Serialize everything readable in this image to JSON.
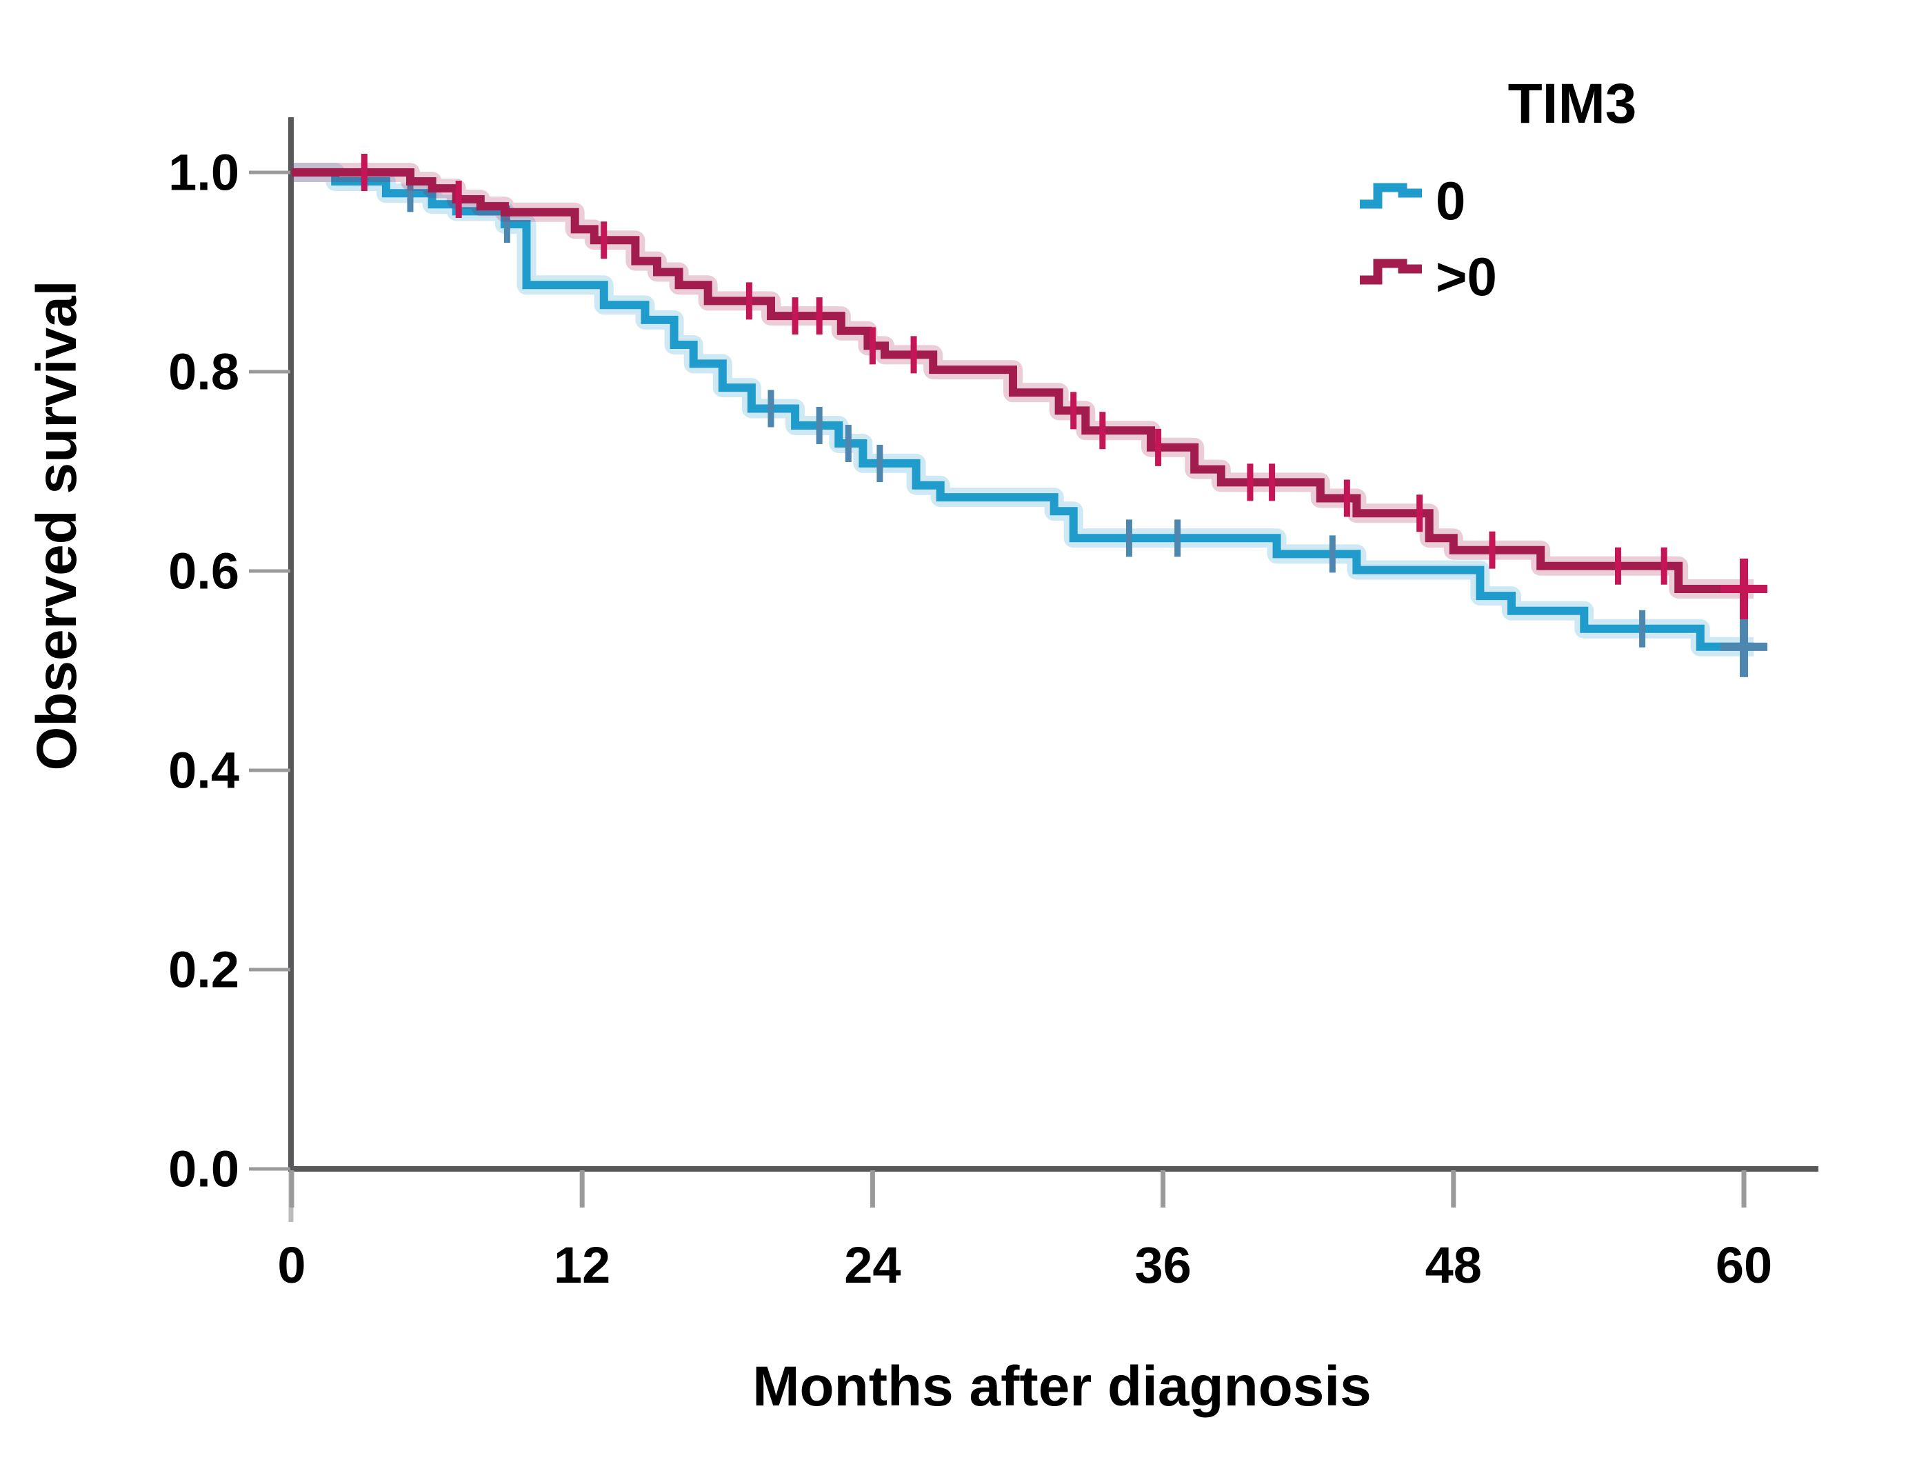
{
  "figure": {
    "background": "#FFFFFF"
  },
  "y_axis": {
    "title": "Observed survival",
    "tick_labels": [
      "1.0",
      "0.8",
      "0.6",
      "0.4",
      "0.2",
      "0.0"
    ],
    "tick_values": [
      1.0,
      0.8,
      0.6,
      0.4,
      0.2,
      0.0
    ]
  },
  "x_axis": {
    "title": "Months after diagnosis",
    "tick_labels": [
      "0",
      "12",
      "24",
      "36",
      "48",
      "60"
    ],
    "tick_values": [
      0,
      12,
      24,
      36,
      48,
      60
    ]
  },
  "legend": {
    "title": "TIM3",
    "entries": [
      {
        "label": "0",
        "series": "tim3-zero"
      },
      {
        "label": ">0",
        "series": "tim3-positive"
      }
    ]
  },
  "colors": {
    "axis": "#58585A",
    "tick": "#9A9A9A",
    "axis_stub": "#BBBBBB",
    "text": "#000000",
    "background": "#FFFFFF",
    "series_zero": "#1F9CCB",
    "series_zero_censor": "#4D87B0",
    "series_positive": "#A31C4E",
    "series_positive_censor": "#C41556"
  },
  "chart_data": {
    "type": "line",
    "subtype": "kaplan-meier-step",
    "title": "",
    "xlabel": "Months after diagnosis",
    "ylabel": "Observed survival",
    "xlim": [
      0,
      62
    ],
    "ylim": [
      0.0,
      1.05
    ],
    "x_ticks": [
      0,
      12,
      24,
      36,
      48,
      60
    ],
    "y_ticks": [
      0.0,
      0.2,
      0.4,
      0.6,
      0.8,
      1.0
    ],
    "grid": false,
    "legend_position": "top-right",
    "series": [
      {
        "id": "tim3-zero",
        "name": "TIM3 = 0",
        "legend_label": "0",
        "color": "#1F9CCB",
        "censor_color": "#4D87B0",
        "end_month": 60.4,
        "steps": [
          [
            0,
            1.0
          ],
          [
            1.8,
            0.991
          ],
          [
            3.9,
            0.979
          ],
          [
            5.8,
            0.968
          ],
          [
            6.8,
            0.961
          ],
          [
            8.8,
            0.948
          ],
          [
            9.7,
            0.887
          ],
          [
            12.9,
            0.867
          ],
          [
            14.6,
            0.852
          ],
          [
            15.8,
            0.827
          ],
          [
            16.6,
            0.808
          ],
          [
            17.8,
            0.784
          ],
          [
            19.0,
            0.763
          ],
          [
            20.8,
            0.746
          ],
          [
            22.6,
            0.728
          ],
          [
            23.6,
            0.708
          ],
          [
            25.8,
            0.686
          ],
          [
            26.8,
            0.674
          ],
          [
            31.5,
            0.66
          ],
          [
            32.3,
            0.633
          ],
          [
            40.7,
            0.617
          ],
          [
            44.0,
            0.601
          ],
          [
            49.1,
            0.575
          ],
          [
            50.4,
            0.56
          ],
          [
            53.4,
            0.542
          ],
          [
            58.2,
            0.524
          ]
        ],
        "censor_marks": [
          4.9,
          8.9,
          19.8,
          21.8,
          23.0,
          24.3,
          34.6,
          36.6,
          43.0,
          55.8,
          60.0
        ]
      },
      {
        "id": "tim3-positive",
        "name": "TIM3 > 0",
        "legend_label": ">0",
        "color": "#A31C4E",
        "censor_color": "#C41556",
        "end_month": 60.4,
        "steps": [
          [
            0,
            1.0
          ],
          [
            4.9,
            0.991
          ],
          [
            5.8,
            0.984
          ],
          [
            6.8,
            0.973
          ],
          [
            7.8,
            0.966
          ],
          [
            8.8,
            0.96
          ],
          [
            11.7,
            0.943
          ],
          [
            12.5,
            0.932
          ],
          [
            14.2,
            0.911
          ],
          [
            15.1,
            0.9
          ],
          [
            16.0,
            0.887
          ],
          [
            17.2,
            0.871
          ],
          [
            19.8,
            0.856
          ],
          [
            22.7,
            0.841
          ],
          [
            23.8,
            0.826
          ],
          [
            24.5,
            0.817
          ],
          [
            26.5,
            0.802
          ],
          [
            29.8,
            0.779
          ],
          [
            31.7,
            0.761
          ],
          [
            32.8,
            0.741
          ],
          [
            35.5,
            0.724
          ],
          [
            37.3,
            0.702
          ],
          [
            38.4,
            0.689
          ],
          [
            42.5,
            0.673
          ],
          [
            44.0,
            0.658
          ],
          [
            47.0,
            0.633
          ],
          [
            48.0,
            0.621
          ],
          [
            51.6,
            0.605
          ],
          [
            57.3,
            0.582
          ]
        ],
        "censor_marks": [
          3.0,
          6.9,
          12.9,
          18.9,
          20.8,
          21.8,
          24.0,
          25.7,
          32.3,
          33.5,
          35.8,
          39.6,
          40.5,
          43.6,
          46.6,
          49.6,
          54.8,
          56.7,
          60.0
        ]
      }
    ]
  }
}
